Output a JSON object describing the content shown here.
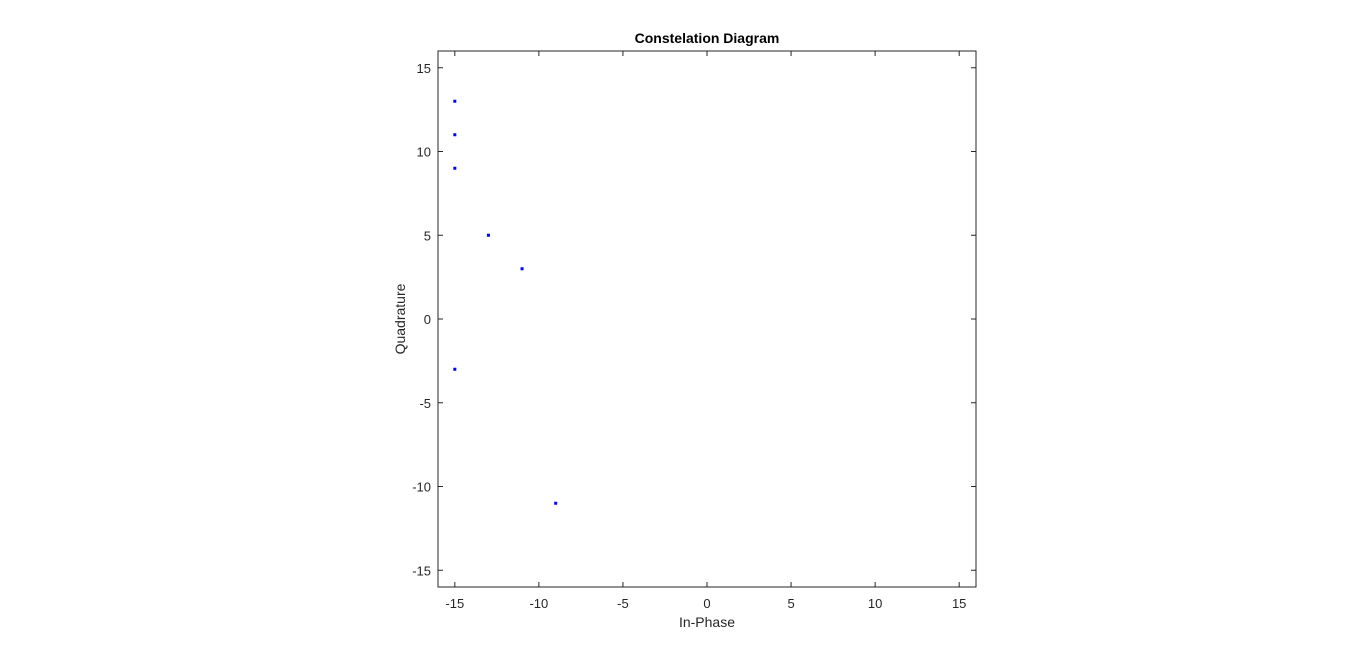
{
  "chart_data": {
    "type": "scatter",
    "title": "Constelation Diagram",
    "xlabel": "In-Phase",
    "ylabel": "Quadrature",
    "xlim": [
      -16,
      16
    ],
    "ylim": [
      -16,
      16
    ],
    "xticks": [
      -15,
      -10,
      -5,
      0,
      5,
      10,
      15
    ],
    "yticks": [
      -15,
      -10,
      -5,
      0,
      5,
      10,
      15
    ],
    "xtick_labels": [
      "-15",
      "-10",
      "-5",
      "0",
      "5",
      "10",
      "15"
    ],
    "ytick_labels": [
      "-15",
      "-10",
      "-5",
      "0",
      "5",
      "10",
      "15"
    ],
    "grid": false,
    "marker_color": "#0000ff",
    "axis_color": "#262626",
    "points": [
      {
        "x": -15,
        "y": 13
      },
      {
        "x": -15,
        "y": 11
      },
      {
        "x": -15,
        "y": 9
      },
      {
        "x": -13,
        "y": 5
      },
      {
        "x": -11,
        "y": 3
      },
      {
        "x": -15,
        "y": -3
      },
      {
        "x": -9,
        "y": -11
      }
    ]
  }
}
